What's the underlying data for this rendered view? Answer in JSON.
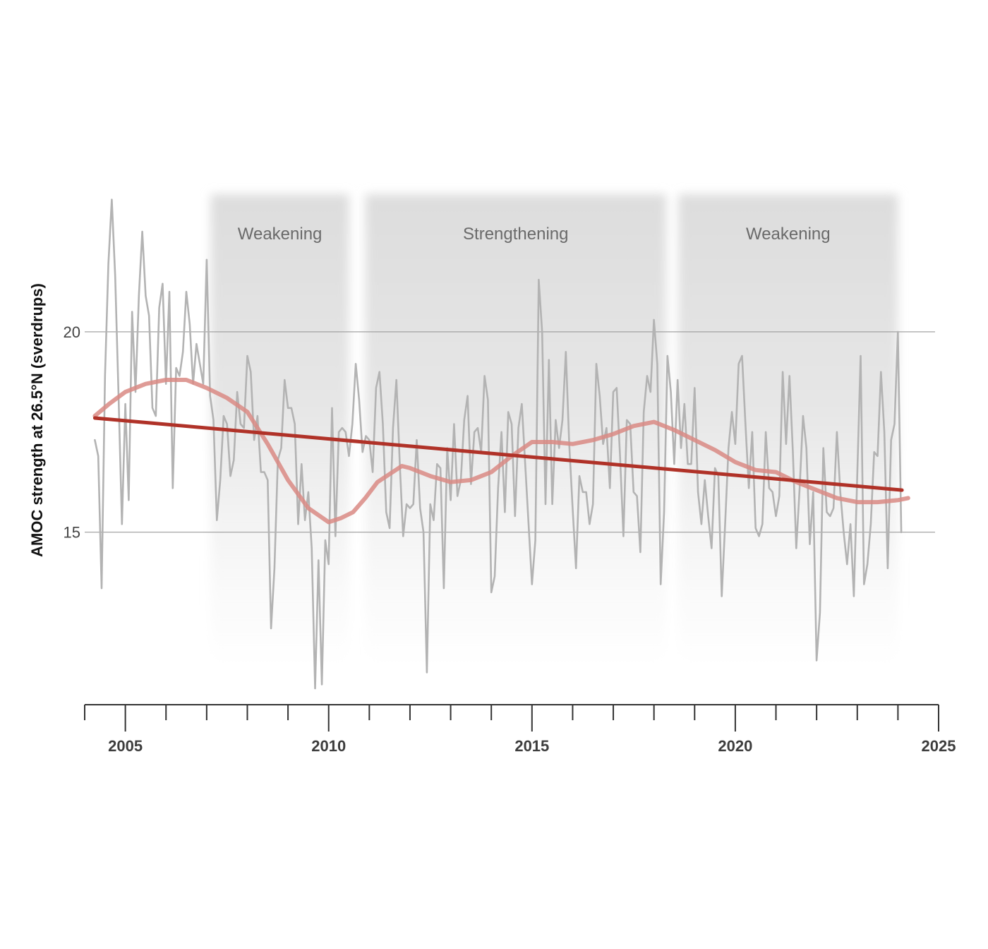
{
  "chart_data": {
    "type": "line",
    "title": "",
    "xlabel": "",
    "ylabel": "AMOC strength at 26.5°N (sverdrups)",
    "xlim": [
      2004,
      2025
    ],
    "ylim": [
      11.1,
      23.4
    ],
    "x_ticks": [
      2005,
      2010,
      2015,
      2020,
      2025
    ],
    "y_ticks": [
      15,
      20
    ],
    "grid": "horizontal",
    "legend": "none",
    "periods": [
      {
        "label": "Weakening",
        "start": 2007.1,
        "end": 2010.5
      },
      {
        "label": "Strengthening",
        "start": 2010.9,
        "end": 2018.3
      },
      {
        "label": "Weakening",
        "start": 2018.6,
        "end": 2024.0
      }
    ],
    "series": [
      {
        "kind": "monthly",
        "color": "#b3b3b3",
        "x_start": 2004.25,
        "step": 0.08333,
        "values": [
          17.3,
          16.9,
          13.6,
          18.9,
          21.7,
          23.3,
          21.4,
          18.4,
          15.2,
          18.2,
          15.8,
          20.5,
          18.5,
          20.9,
          22.5,
          20.9,
          20.4,
          18.1,
          17.9,
          20.6,
          21.2,
          18.7,
          21.0,
          16.1,
          19.1,
          18.9,
          19.5,
          21.0,
          20.2,
          18.7,
          19.7,
          19.2,
          18.7,
          21.8,
          18.4,
          17.8,
          15.3,
          16.3,
          17.9,
          17.7,
          16.4,
          16.8,
          18.5,
          17.7,
          17.6,
          19.4,
          19.0,
          17.3,
          17.9,
          16.5,
          16.5,
          16.3,
          12.6,
          14.1,
          16.8,
          17.1,
          18.8,
          18.1,
          18.1,
          17.7,
          15.2,
          16.7,
          15.3,
          16.0,
          14.6,
          11.1,
          14.3,
          11.2,
          14.8,
          14.2,
          18.1,
          14.9,
          17.5,
          17.6,
          17.5,
          16.9,
          17.7,
          19.2,
          18.3,
          17.0,
          17.4,
          17.3,
          16.5,
          18.6,
          19.0,
          17.7,
          15.5,
          15.1,
          17.6,
          18.8,
          16.7,
          14.9,
          15.7,
          15.6,
          15.7,
          17.3,
          15.6,
          15.0,
          11.5,
          15.7,
          15.3,
          16.7,
          16.6,
          13.6,
          17.1,
          15.8,
          17.7,
          15.9,
          16.3,
          17.8,
          18.4,
          16.2,
          17.5,
          17.6,
          17.0,
          18.9,
          18.3,
          13.5,
          13.9,
          16.1,
          17.5,
          15.5,
          18.0,
          17.7,
          15.4,
          17.6,
          18.2,
          16.7,
          15.2,
          13.7,
          14.8,
          21.3,
          20.0,
          15.7,
          19.3,
          15.7,
          17.8,
          17.1,
          17.8,
          19.5,
          17.2,
          15.6,
          14.1,
          16.4,
          16.0,
          16.0,
          15.2,
          15.7,
          19.2,
          18.4,
          17.2,
          17.6,
          16.1,
          18.5,
          18.6,
          16.9,
          14.9,
          17.8,
          17.7,
          16.0,
          15.9,
          14.5,
          18.0,
          18.9,
          18.5,
          20.3,
          19.2,
          13.7,
          15.5,
          19.4,
          18.5,
          16.7,
          18.8,
          17.1,
          18.2,
          16.7,
          16.7,
          18.6,
          16.0,
          15.2,
          16.3,
          15.4,
          14.6,
          16.6,
          16.4,
          13.4,
          15.2,
          17.1,
          18.0,
          17.2,
          19.2,
          19.4,
          17.7,
          16.1,
          17.5,
          15.1,
          14.9,
          15.2,
          17.5,
          16.1,
          16.0,
          15.4,
          15.9,
          19.0,
          17.2,
          18.9,
          17.0,
          14.6,
          16.1,
          17.9,
          17.1,
          14.7,
          16.0,
          11.8,
          13.0,
          17.1,
          15.5,
          15.4,
          15.6,
          17.5,
          16.0,
          15.0,
          14.2,
          15.2,
          13.4,
          16.4,
          19.4,
          13.7,
          14.2,
          15.2,
          17.0,
          16.9,
          19.0,
          17.5,
          14.1,
          17.3,
          17.7,
          20.0,
          15.0
        ]
      },
      {
        "kind": "smoothed",
        "color": "#d98a84",
        "x": [
          2004.25,
          2004.6,
          2005.0,
          2005.5,
          2006.0,
          2006.5,
          2007.0,
          2007.5,
          2008.0,
          2008.5,
          2009.0,
          2009.5,
          2010.0,
          2010.3,
          2010.6,
          2010.9,
          2011.2,
          2011.5,
          2011.8,
          2012.0,
          2012.5,
          2013.0,
          2013.5,
          2014.0,
          2014.5,
          2015.0,
          2015.5,
          2016.0,
          2016.5,
          2017.0,
          2017.5,
          2018.0,
          2018.5,
          2019.0,
          2019.5,
          2020.0,
          2020.5,
          2021.0,
          2021.5,
          2022.0,
          2022.5,
          2023.0,
          2023.5,
          2024.0,
          2024.25
        ],
        "values": [
          17.9,
          18.2,
          18.5,
          18.7,
          18.8,
          18.8,
          18.6,
          18.35,
          18.0,
          17.2,
          16.3,
          15.6,
          15.25,
          15.35,
          15.5,
          15.85,
          16.25,
          16.45,
          16.65,
          16.6,
          16.4,
          16.25,
          16.3,
          16.5,
          16.9,
          17.25,
          17.25,
          17.2,
          17.3,
          17.45,
          17.65,
          17.75,
          17.55,
          17.3,
          17.05,
          16.75,
          16.55,
          16.5,
          16.25,
          16.05,
          15.85,
          15.75,
          15.75,
          15.8,
          15.85
        ]
      },
      {
        "kind": "trend",
        "color": "#b03228",
        "x": [
          2004.25,
          2024.1
        ],
        "values": [
          17.85,
          16.05
        ]
      }
    ]
  }
}
